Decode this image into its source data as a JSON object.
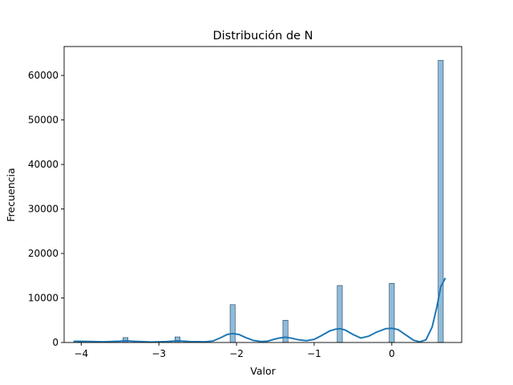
{
  "chart_data": {
    "type": "bar",
    "subtype": "histogram-with-kde",
    "title": "Distribución de N",
    "xlabel": "Valor",
    "ylabel": "Frecuencia",
    "xlim": [
      -4.22,
      0.9
    ],
    "ylim": [
      0,
      66500
    ],
    "xticks": [
      -4,
      -3,
      -2,
      -1,
      0
    ],
    "xtick_labels": [
      "−4",
      "−3",
      "−2",
      "−1",
      "0"
    ],
    "yticks": [
      0,
      10000,
      20000,
      30000,
      40000,
      50000,
      60000
    ],
    "ytick_labels": [
      "0",
      "10000",
      "20000",
      "30000",
      "40000",
      "50000",
      "60000"
    ],
    "grid": false,
    "bar_color": "#1f77b4",
    "bar_alpha": 0.5,
    "line_color": "#1f77b4",
    "bin_width": 0.065,
    "bins": [
      {
        "x": -4.02,
        "count": 60
      },
      {
        "x": -3.43,
        "count": 1100
      },
      {
        "x": -2.76,
        "count": 1250
      },
      {
        "x": -2.05,
        "count": 8500
      },
      {
        "x": -1.37,
        "count": 5000
      },
      {
        "x": -0.67,
        "count": 12800
      },
      {
        "x": 0.0,
        "count": 13300
      },
      {
        "x": 0.63,
        "count": 63400
      }
    ],
    "kde": [
      [
        -4.1,
        250
      ],
      [
        -4.02,
        280
      ],
      [
        -3.9,
        220
      ],
      [
        -3.7,
        150
      ],
      [
        -3.5,
        300
      ],
      [
        -3.43,
        380
      ],
      [
        -3.3,
        250
      ],
      [
        -3.1,
        120
      ],
      [
        -2.9,
        200
      ],
      [
        -2.76,
        380
      ],
      [
        -2.6,
        200
      ],
      [
        -2.4,
        150
      ],
      [
        -2.3,
        350
      ],
      [
        -2.2,
        1100
      ],
      [
        -2.12,
        1800
      ],
      [
        -2.05,
        2000
      ],
      [
        -1.97,
        1800
      ],
      [
        -1.88,
        1100
      ],
      [
        -1.78,
        450
      ],
      [
        -1.68,
        200
      ],
      [
        -1.6,
        300
      ],
      [
        -1.52,
        700
      ],
      [
        -1.45,
        1000
      ],
      [
        -1.37,
        1200
      ],
      [
        -1.3,
        1000
      ],
      [
        -1.2,
        600
      ],
      [
        -1.1,
        400
      ],
      [
        -1.0,
        700
      ],
      [
        -0.9,
        1600
      ],
      [
        -0.8,
        2600
      ],
      [
        -0.72,
        3000
      ],
      [
        -0.67,
        3100
      ],
      [
        -0.6,
        2800
      ],
      [
        -0.5,
        1800
      ],
      [
        -0.4,
        1000
      ],
      [
        -0.3,
        1400
      ],
      [
        -0.2,
        2300
      ],
      [
        -0.08,
        3100
      ],
      [
        0.0,
        3200
      ],
      [
        0.08,
        2900
      ],
      [
        0.18,
        1700
      ],
      [
        0.28,
        500
      ],
      [
        0.36,
        150
      ],
      [
        0.44,
        600
      ],
      [
        0.52,
        3500
      ],
      [
        0.58,
        8000
      ],
      [
        0.63,
        12500
      ],
      [
        0.69,
        14500
      ]
    ]
  }
}
